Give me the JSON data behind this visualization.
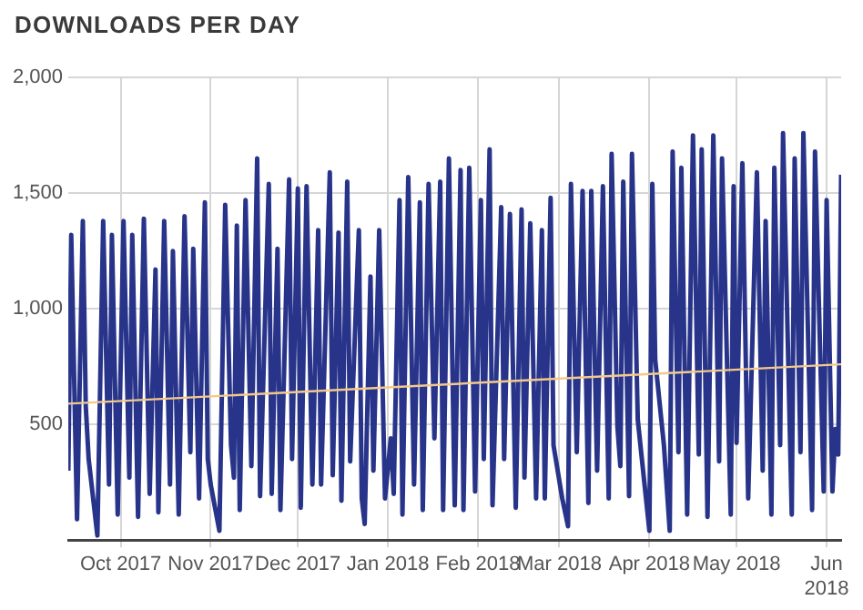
{
  "chart_data": {
    "type": "line",
    "title": "DOWNLOADS PER DAY",
    "xlim": [
      "2017-09-13",
      "2018-06-06"
    ],
    "xticks": [
      {
        "value": "2017-10-01",
        "label": "Oct 2017"
      },
      {
        "value": "2017-11-01",
        "label": "Nov 2017"
      },
      {
        "value": "2017-12-01",
        "label": "Dec 2017"
      },
      {
        "value": "2018-01-01",
        "label": "Jan 2018"
      },
      {
        "value": "2018-02-01",
        "label": "Feb 2018"
      },
      {
        "value": "2018-03-01",
        "label": "Mar 2018"
      },
      {
        "value": "2018-04-01",
        "label": "Apr 2018"
      },
      {
        "value": "2018-05-01",
        "label": "May 2018"
      },
      {
        "value": "2018-06-01",
        "label": "Jun 2018"
      }
    ],
    "ylim": [
      0,
      2000
    ],
    "yticks": [
      {
        "value": 0,
        "label": null
      },
      500,
      {
        "value": 1000,
        "label": "1,000"
      },
      {
        "value": 1500,
        "label": "1,500"
      },
      {
        "value": 2000,
        "label": "2,000"
      }
    ],
    "grid": true,
    "legend": false,
    "marker": "none",
    "line_style": "solid",
    "series": [
      {
        "color": "#28348a",
        "x": [
          "2017-09-13",
          "2017-09-14",
          "2017-09-16",
          "2017-09-18",
          "2017-09-19",
          "2017-09-20",
          "2017-09-23",
          "2017-09-25",
          "2017-09-27",
          "2017-09-28",
          "2017-09-30",
          "2017-10-02",
          "2017-10-04",
          "2017-10-05",
          "2017-10-07",
          "2017-10-09",
          "2017-10-11",
          "2017-10-13",
          "2017-10-14",
          "2017-10-16",
          "2017-10-18",
          "2017-10-19",
          "2017-10-21",
          "2017-10-23",
          "2017-10-25",
          "2017-10-26",
          "2017-10-28",
          "2017-10-30",
          "2017-10-31",
          "2017-11-01",
          "2017-11-04",
          "2017-11-06",
          "2017-11-08",
          "2017-11-09",
          "2017-11-10",
          "2017-11-11",
          "2017-11-13",
          "2017-11-15",
          "2017-11-17",
          "2017-11-18",
          "2017-11-21",
          "2017-11-22",
          "2017-11-24",
          "2017-11-25",
          "2017-11-28",
          "2017-11-29",
          "2017-12-01",
          "2017-12-02",
          "2017-12-04",
          "2017-12-06",
          "2017-12-08",
          "2017-12-09",
          "2017-12-12",
          "2017-12-13",
          "2017-12-15",
          "2017-12-16",
          "2017-12-18",
          "2017-12-19",
          "2017-12-22",
          "2017-12-23",
          "2017-12-24",
          "2017-12-26",
          "2017-12-27",
          "2017-12-29",
          "2017-12-31",
          "2018-01-02",
          "2018-01-03",
          "2018-01-05",
          "2018-01-06",
          "2018-01-08",
          "2018-01-10",
          "2018-01-12",
          "2018-01-13",
          "2018-01-15",
          "2018-01-17",
          "2018-01-19",
          "2018-01-20",
          "2018-01-22",
          "2018-01-24",
          "2018-01-26",
          "2018-01-27",
          "2018-01-29",
          "2018-01-31",
          "2018-02-02",
          "2018-02-03",
          "2018-02-05",
          "2018-02-06",
          "2018-02-09",
          "2018-02-10",
          "2018-02-12",
          "2018-02-14",
          "2018-02-16",
          "2018-02-17",
          "2018-02-19",
          "2018-02-21",
          "2018-02-23",
          "2018-02-24",
          "2018-02-26",
          "2018-02-27",
          "2018-03-02",
          "2018-03-04",
          "2018-03-05",
          "2018-03-07",
          "2018-03-09",
          "2018-03-11",
          "2018-03-12",
          "2018-03-14",
          "2018-03-16",
          "2018-03-18",
          "2018-03-19",
          "2018-03-21",
          "2018-03-22",
          "2018-03-23",
          "2018-03-25",
          "2018-03-26",
          "2018-03-28",
          "2018-04-01",
          "2018-04-02",
          "2018-04-03",
          "2018-04-06",
          "2018-04-08",
          "2018-04-09",
          "2018-04-11",
          "2018-04-12",
          "2018-04-14",
          "2018-04-16",
          "2018-04-18",
          "2018-04-19",
          "2018-04-21",
          "2018-04-23",
          "2018-04-25",
          "2018-04-26",
          "2018-04-29",
          "2018-04-30",
          "2018-05-01",
          "2018-05-03",
          "2018-05-05",
          "2018-05-08",
          "2018-05-10",
          "2018-05-11",
          "2018-05-13",
          "2018-05-14",
          "2018-05-16",
          "2018-05-17",
          "2018-05-20",
          "2018-05-21",
          "2018-05-23",
          "2018-05-24",
          "2018-05-27",
          "2018-05-28",
          "2018-05-31",
          "2018-06-01",
          "2018-06-03",
          "2018-06-04",
          "2018-06-05",
          "2018-06-06"
        ],
        "values": [
          300,
          1320,
          90,
          1380,
          580,
          350,
          20,
          1380,
          240,
          1320,
          110,
          1380,
          270,
          1320,
          100,
          1390,
          200,
          1170,
          120,
          1380,
          240,
          1250,
          110,
          1400,
          380,
          1260,
          180,
          1460,
          350,
          240,
          40,
          1450,
          410,
          270,
          1360,
          130,
          1470,
          320,
          1650,
          190,
          1540,
          200,
          1260,
          130,
          1560,
          350,
          1520,
          140,
          1530,
          240,
          1340,
          240,
          1590,
          280,
          1330,
          170,
          1550,
          340,
          1340,
          180,
          70,
          1140,
          300,
          1340,
          180,
          440,
          200,
          1470,
          110,
          1570,
          240,
          1460,
          130,
          1540,
          440,
          1550,
          130,
          1650,
          150,
          1600,
          130,
          1610,
          210,
          1470,
          350,
          1690,
          150,
          1440,
          350,
          1410,
          140,
          1430,
          270,
          1370,
          180,
          1340,
          180,
          1480,
          410,
          180,
          60,
          1540,
          380,
          1510,
          160,
          1510,
          300,
          1530,
          180,
          1670,
          490,
          320,
          1550,
          190,
          1670,
          520,
          40,
          1540,
          780,
          410,
          40,
          1680,
          380,
          1610,
          110,
          1750,
          370,
          1690,
          100,
          1750,
          340,
          1650,
          110,
          1530,
          420,
          1630,
          180,
          1590,
          300,
          1380,
          110,
          1610,
          410,
          1760,
          110,
          1650,
          380,
          1760,
          130,
          1680,
          210,
          1470,
          210,
          480,
          370,
          1580
        ]
      },
      {
        "type": "line",
        "color": "#f3c98b",
        "x": [
          "2017-09-13",
          "2018-06-06"
        ],
        "values": [
          590,
          760
        ]
      }
    ]
  }
}
